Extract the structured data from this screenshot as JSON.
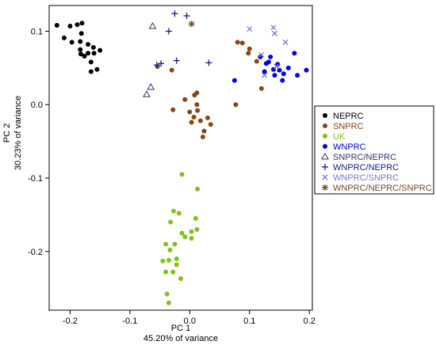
{
  "chart_data": {
    "type": "scatter",
    "title": "",
    "xlabel": "PC 1",
    "xlabel_sub": "45.20% of variance",
    "ylabel": "PC 2",
    "ylabel_sub": "30.23% of variance",
    "xlim": [
      -0.235,
      0.205
    ],
    "ylim": [
      -0.28,
      0.135
    ],
    "xticks": [
      -0.2,
      -0.1,
      0.0,
      0.1,
      0.2
    ],
    "xtick_labels": [
      "-0.2",
      "-0.1",
      "0.0",
      "0.1",
      "0.2"
    ],
    "yticks": [
      -0.2,
      -0.1,
      0.0,
      0.1
    ],
    "ytick_labels": [
      "-0.2",
      "-0.1",
      "0.0",
      "0.1"
    ],
    "grid": false,
    "legend_position": "right",
    "series": [
      {
        "name": "NEPRC",
        "color": "#000000",
        "marker": "dot",
        "points": [
          [
            -0.222,
            0.108
          ],
          [
            -0.21,
            0.091
          ],
          [
            -0.2,
            0.107
          ],
          [
            -0.188,
            0.109
          ],
          [
            -0.181,
            0.097
          ],
          [
            -0.18,
            0.111
          ],
          [
            -0.197,
            0.085
          ],
          [
            -0.183,
            0.086
          ],
          [
            -0.183,
            0.075
          ],
          [
            -0.182,
            0.069
          ],
          [
            -0.17,
            0.082
          ],
          [
            -0.17,
            0.07
          ],
          [
            -0.161,
            0.078
          ],
          [
            -0.165,
            0.058
          ],
          [
            -0.16,
            0.07
          ],
          [
            -0.15,
            0.074
          ],
          [
            -0.176,
            0.066
          ],
          [
            -0.165,
            0.045
          ],
          [
            -0.155,
            0.048
          ]
        ]
      },
      {
        "name": "SNPRC",
        "color": "#8b4513",
        "marker": "dot",
        "points": [
          [
            -0.054,
            0.052
          ],
          [
            -0.03,
            0.047
          ],
          [
            -0.028,
            -0.007
          ],
          [
            -0.008,
            0.007
          ],
          [
            0.0,
            -0.01
          ],
          [
            0.003,
            -0.024
          ],
          [
            0.007,
            -0.017
          ],
          [
            0.008,
            0.013
          ],
          [
            0.012,
            0.016
          ],
          [
            0.012,
            0.0
          ],
          [
            0.013,
            -0.008
          ],
          [
            0.018,
            -0.022
          ],
          [
            0.022,
            -0.044
          ],
          [
            0.024,
            -0.036
          ],
          [
            0.03,
            -0.018
          ],
          [
            0.035,
            -0.027
          ],
          [
            0.077,
            0.0
          ],
          [
            0.08,
            0.085
          ],
          [
            0.088,
            0.084
          ],
          [
            0.098,
            0.07
          ],
          [
            0.1,
            0.076
          ],
          [
            0.112,
            0.059
          ],
          [
            0.12,
            0.022
          ]
        ]
      },
      {
        "name": "UK",
        "color": "#7cc416",
        "marker": "dot",
        "points": [
          [
            -0.013,
            -0.095
          ],
          [
            0.013,
            -0.115
          ],
          [
            -0.027,
            -0.145
          ],
          [
            -0.032,
            -0.16
          ],
          [
            -0.018,
            -0.148
          ],
          [
            0.01,
            -0.155
          ],
          [
            -0.013,
            -0.175
          ],
          [
            0.003,
            -0.173
          ],
          [
            0.012,
            -0.17
          ],
          [
            -0.008,
            -0.18
          ],
          [
            0.003,
            -0.182
          ],
          [
            -0.04,
            -0.19
          ],
          [
            -0.033,
            -0.198
          ],
          [
            -0.045,
            -0.213
          ],
          [
            -0.025,
            -0.19
          ],
          [
            -0.022,
            -0.21
          ],
          [
            -0.035,
            -0.212
          ],
          [
            -0.022,
            -0.218
          ],
          [
            -0.028,
            -0.228
          ],
          [
            -0.015,
            -0.237
          ],
          [
            -0.04,
            -0.228
          ],
          [
            -0.038,
            -0.258
          ],
          [
            -0.035,
            -0.27
          ]
        ]
      },
      {
        "name": "WNPRC",
        "color": "#0000ee",
        "marker": "dot",
        "points": [
          [
            0.075,
            0.033
          ],
          [
            0.118,
            0.065
          ],
          [
            0.125,
            0.045
          ],
          [
            0.128,
            0.056
          ],
          [
            0.132,
            0.058
          ],
          [
            0.135,
            0.065
          ],
          [
            0.14,
            0.048
          ],
          [
            0.142,
            0.04
          ],
          [
            0.147,
            0.055
          ],
          [
            0.15,
            0.047
          ],
          [
            0.155,
            0.033
          ],
          [
            0.157,
            0.042
          ],
          [
            0.165,
            0.05
          ],
          [
            0.175,
            0.07
          ],
          [
            0.18,
            0.04
          ],
          [
            0.195,
            0.047
          ]
        ]
      },
      {
        "name": "SNPRC/NEPRC",
        "color": "#333366",
        "marker": "triangle",
        "points": [
          [
            -0.062,
            0.107
          ],
          [
            -0.065,
            0.024
          ],
          [
            -0.072,
            0.014
          ]
        ]
      },
      {
        "name": "WNPRC/NEPRC",
        "color": "#1a1a8c",
        "marker": "plus",
        "points": [
          [
            -0.055,
            0.054
          ],
          [
            -0.048,
            0.056
          ],
          [
            -0.035,
            0.1
          ],
          [
            -0.025,
            0.124
          ],
          [
            -0.022,
            0.06
          ],
          [
            -0.005,
            0.121
          ],
          [
            0.032,
            0.057
          ]
        ]
      },
      {
        "name": "WNPRC/SNPRC",
        "color": "#7a7acc",
        "marker": "cross",
        "points": [
          [
            0.1,
            0.103
          ],
          [
            0.12,
            0.068
          ],
          [
            0.125,
            0.04
          ],
          [
            0.14,
            0.105
          ],
          [
            0.142,
            0.097
          ],
          [
            0.145,
            0.052
          ],
          [
            0.16,
            0.085
          ]
        ]
      },
      {
        "name": "WNPRC/NEPRC/SNPRC",
        "color": "#6b4a2b",
        "marker": "star",
        "points": [
          [
            0.003,
            0.11
          ]
        ]
      }
    ]
  }
}
